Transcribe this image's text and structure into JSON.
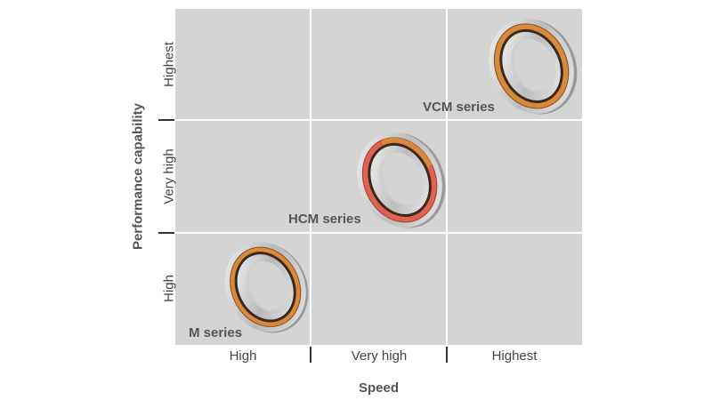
{
  "x_axis": {
    "title": "Speed",
    "ticks": [
      "High",
      "Very high",
      "Highest"
    ]
  },
  "y_axis": {
    "title": "Performance capability",
    "ticks": [
      "High",
      "Very high",
      "Highest"
    ]
  },
  "products": [
    {
      "label": "M series",
      "speed": "High",
      "performance": "High",
      "seal_color": "#c8762f"
    },
    {
      "label": "HCM series",
      "speed": "Very high",
      "performance": "Very high",
      "seal_color": "#e06250"
    },
    {
      "label": "VCM series",
      "speed": "Highest",
      "performance": "Highest",
      "seal_color": "#c8762f"
    }
  ],
  "colors": {
    "grid_background": "#d4d4d4",
    "grid_lines": "#ffffff",
    "cage_orange": "#d9893c",
    "hcm_red_seal": "#e06250"
  },
  "icons": [
    "bearing-icon"
  ]
}
